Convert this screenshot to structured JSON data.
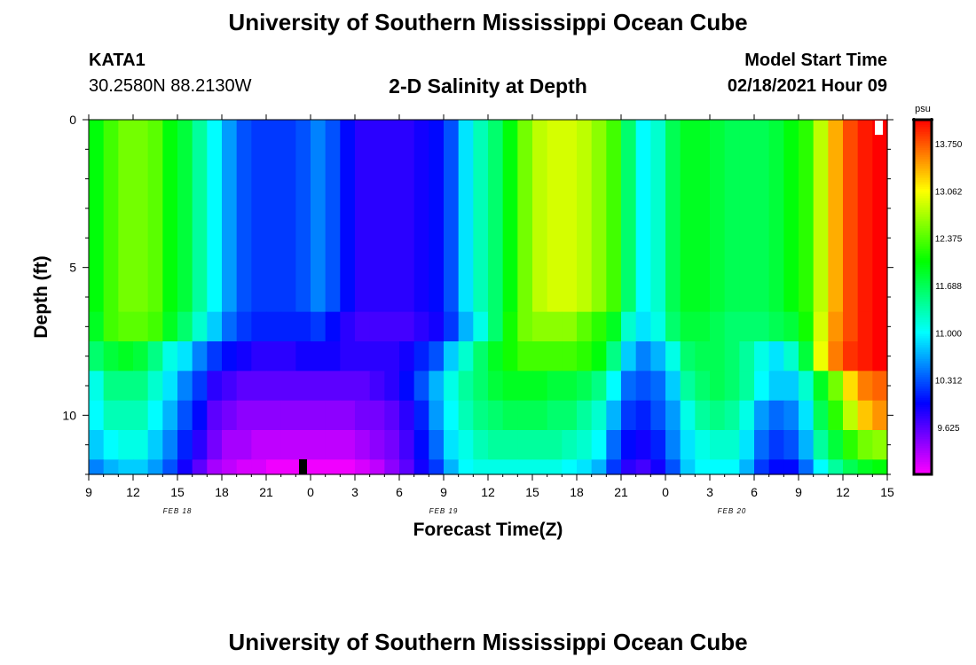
{
  "header": {
    "title_top": "University of Southern Mississippi Ocean Cube",
    "title_bottom": "University of Southern Mississippi Ocean Cube",
    "station": "KATA1",
    "coords": "30.2580N 88.2130W",
    "model_start_label": "Model Start Time",
    "model_start_value": "02/18/2021 Hour 09"
  },
  "chart_data": {
    "type": "heatmap",
    "title": "2-D Salinity at Depth",
    "xlabel": "Forecast Time(Z)",
    "ylabel": "Depth (ft)",
    "ylim": [
      0,
      12
    ],
    "y_ticks": [
      "0",
      "5",
      "10"
    ],
    "x_ticks": [
      "9",
      "12",
      "15",
      "18",
      "21",
      "0",
      "3",
      "6",
      "9",
      "12",
      "15",
      "18",
      "21",
      "0",
      "3",
      "6",
      "9",
      "12",
      "15"
    ],
    "date_labels": [
      "FEB 18",
      "FEB 19",
      "FEB 20"
    ],
    "colorbar": {
      "unit": "psu",
      "range": [
        8.94,
        14.1
      ],
      "labels": [
        "13.750",
        "13.062",
        "12.375",
        "11.688",
        "11.000",
        "10.312",
        "9.625"
      ]
    },
    "forecast_hours": 54,
    "layer_depth_ft": [
      6.5,
      7.5,
      8.5,
      9.5,
      10.5,
      11.5,
      12.0
    ],
    "surface_psu": [
      12.0,
      12.3,
      12.5,
      12.5,
      12.4,
      12.0,
      11.8,
      11.4,
      11.0,
      10.6,
      10.3,
      10.2,
      10.2,
      10.2,
      10.3,
      10.5,
      10.3,
      10.0,
      9.8,
      9.8,
      9.8,
      9.8,
      9.9,
      10.0,
      10.3,
      10.9,
      11.3,
      11.6,
      12.0,
      12.5,
      12.8,
      12.9,
      12.9,
      12.8,
      12.6,
      12.3,
      11.6,
      11.0,
      11.2,
      11.7,
      11.9,
      11.9,
      11.8,
      11.7,
      11.7,
      11.7,
      11.8,
      12.0,
      12.2,
      12.8,
      13.4,
      13.8,
      14.0,
      14.1
    ],
    "layer_psu": [
      [
        11.9,
        12.3,
        12.4,
        12.4,
        12.3,
        11.9,
        11.6,
        11.2,
        10.8,
        10.4,
        10.2,
        10.1,
        10.1,
        10.1,
        10.1,
        10.2,
        10.0,
        9.8,
        9.7,
        9.7,
        9.7,
        9.7,
        9.8,
        9.9,
        10.2,
        10.7,
        11.1,
        11.6,
        12.1,
        12.5,
        12.6,
        12.6,
        12.6,
        12.4,
        12.2,
        11.9,
        11.2,
        10.9,
        11.1,
        11.6,
        11.8,
        11.8,
        11.7,
        11.6,
        11.6,
        11.6,
        11.7,
        11.8,
        12.1,
        12.9,
        13.5,
        13.8,
        14.0,
        14.1
      ],
      [
        11.6,
        11.8,
        11.9,
        11.8,
        11.5,
        11.1,
        10.9,
        10.5,
        10.2,
        10.0,
        9.9,
        9.8,
        9.8,
        9.8,
        9.9,
        9.9,
        9.9,
        9.8,
        9.8,
        9.8,
        9.8,
        9.9,
        10.1,
        10.3,
        10.8,
        11.2,
        11.6,
        11.9,
        12.1,
        12.3,
        12.3,
        12.3,
        12.3,
        12.2,
        12.0,
        11.5,
        10.8,
        10.5,
        10.7,
        11.1,
        11.6,
        11.7,
        11.7,
        11.6,
        11.4,
        11.1,
        10.9,
        11.2,
        11.8,
        13.0,
        13.6,
        13.9,
        14.0,
        14.1
      ],
      [
        11.1,
        11.5,
        11.5,
        11.5,
        11.2,
        10.9,
        10.5,
        10.2,
        9.8,
        9.7,
        9.6,
        9.6,
        9.6,
        9.6,
        9.6,
        9.6,
        9.6,
        9.6,
        9.6,
        9.7,
        9.8,
        10.0,
        10.3,
        10.7,
        11.1,
        11.4,
        11.6,
        11.8,
        11.9,
        11.9,
        11.9,
        11.8,
        11.8,
        11.7,
        11.5,
        11.0,
        10.4,
        10.3,
        10.4,
        10.8,
        11.4,
        11.6,
        11.7,
        11.6,
        11.4,
        11.0,
        10.8,
        10.8,
        11.2,
        11.9,
        12.5,
        13.2,
        13.6,
        13.7
      ],
      [
        11.0,
        11.3,
        11.3,
        11.3,
        11.0,
        10.7,
        10.3,
        10.0,
        9.6,
        9.5,
        9.4,
        9.4,
        9.4,
        9.4,
        9.4,
        9.4,
        9.4,
        9.4,
        9.5,
        9.5,
        9.6,
        9.8,
        10.1,
        10.6,
        11.0,
        11.3,
        11.5,
        11.6,
        11.7,
        11.7,
        11.7,
        11.6,
        11.6,
        11.4,
        11.2,
        10.7,
        10.2,
        10.1,
        10.3,
        10.6,
        11.1,
        11.4,
        11.5,
        11.4,
        11.1,
        10.6,
        10.4,
        10.5,
        10.9,
        11.7,
        12.2,
        12.8,
        13.3,
        13.5
      ],
      [
        10.8,
        11.0,
        11.1,
        11.1,
        10.8,
        10.5,
        10.1,
        9.8,
        9.5,
        9.3,
        9.3,
        9.2,
        9.2,
        9.2,
        9.2,
        9.2,
        9.2,
        9.2,
        9.3,
        9.4,
        9.5,
        9.7,
        10.0,
        10.4,
        10.9,
        11.1,
        11.3,
        11.4,
        11.4,
        11.4,
        11.4,
        11.4,
        11.3,
        11.2,
        11.0,
        10.4,
        10.0,
        9.9,
        10.1,
        10.5,
        10.9,
        11.1,
        11.2,
        11.2,
        10.9,
        10.4,
        10.2,
        10.3,
        10.7,
        11.4,
        11.8,
        12.2,
        12.5,
        12.6
      ],
      [
        10.5,
        10.7,
        10.8,
        10.8,
        10.6,
        10.3,
        9.9,
        9.6,
        9.3,
        9.2,
        9.1,
        9.1,
        9.0,
        9.0,
        9.0,
        9.0,
        9.0,
        9.0,
        9.1,
        9.2,
        9.4,
        9.6,
        9.9,
        10.2,
        10.7,
        11.0,
        11.1,
        11.1,
        11.1,
        11.1,
        11.1,
        11.1,
        11.0,
        10.9,
        10.7,
        10.2,
        9.8,
        9.7,
        9.9,
        10.3,
        10.8,
        11.0,
        11.0,
        11.0,
        10.7,
        10.2,
        10.0,
        10.0,
        10.4,
        11.0,
        11.4,
        11.7,
        11.9,
        12.0
      ],
      [
        10.2,
        10.4,
        10.5,
        10.5,
        10.3,
        10.0,
        9.7,
        9.4,
        9.1,
        9.0,
        8.9,
        8.9,
        8.9,
        8.9,
        8.9,
        8.8,
        8.8,
        8.8,
        8.9,
        9.0,
        9.2,
        9.5,
        9.8,
        10.1,
        10.5,
        10.8,
        10.9,
        10.9,
        10.9,
        10.9,
        10.9,
        10.9,
        10.8,
        10.7,
        10.5,
        10.0,
        9.6,
        9.6,
        9.8,
        10.2,
        10.6,
        10.8,
        10.8,
        10.8,
        10.5,
        10.0,
        9.8,
        9.8,
        10.1,
        10.7,
        11.1,
        11.4,
        11.6,
        11.7
      ]
    ]
  }
}
